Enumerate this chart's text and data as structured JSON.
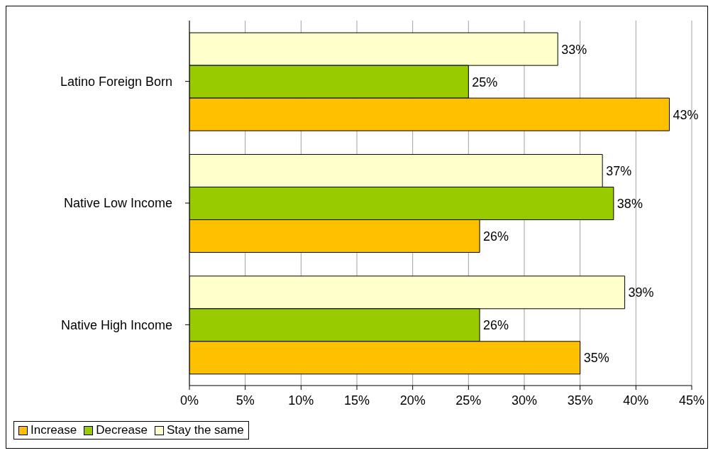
{
  "chart_data": {
    "type": "bar",
    "orientation": "horizontal",
    "categories": [
      "Latino Foreign Born",
      "Native Low Income",
      "Native High Income"
    ],
    "series": [
      {
        "name": "Increase",
        "color": "#ffc000",
        "values": [
          43,
          26,
          35
        ],
        "value_labels": [
          "43%",
          "26%",
          "35%"
        ]
      },
      {
        "name": "Decrease",
        "color": "#99cc00",
        "values": [
          25,
          38,
          26
        ],
        "value_labels": [
          "25%",
          "38%",
          "26%"
        ]
      },
      {
        "name": "Stay the same",
        "color": "#ffffcc",
        "values": [
          33,
          37,
          39
        ],
        "value_labels": [
          "33%",
          "37%",
          "39%"
        ]
      }
    ],
    "xlim": [
      0,
      45
    ],
    "xticks": [
      {
        "value": 0,
        "label": "0%"
      },
      {
        "value": 5,
        "label": "5%"
      },
      {
        "value": 10,
        "label": "10%"
      },
      {
        "value": 15,
        "label": "15%"
      },
      {
        "value": 20,
        "label": "20%"
      },
      {
        "value": 25,
        "label": "25%"
      },
      {
        "value": 30,
        "label": "30%"
      },
      {
        "value": 35,
        "label": "35%"
      },
      {
        "value": 40,
        "label": "40%"
      },
      {
        "value": 45,
        "label": "45%"
      }
    ],
    "grid": "x",
    "legend": "bottom"
  }
}
